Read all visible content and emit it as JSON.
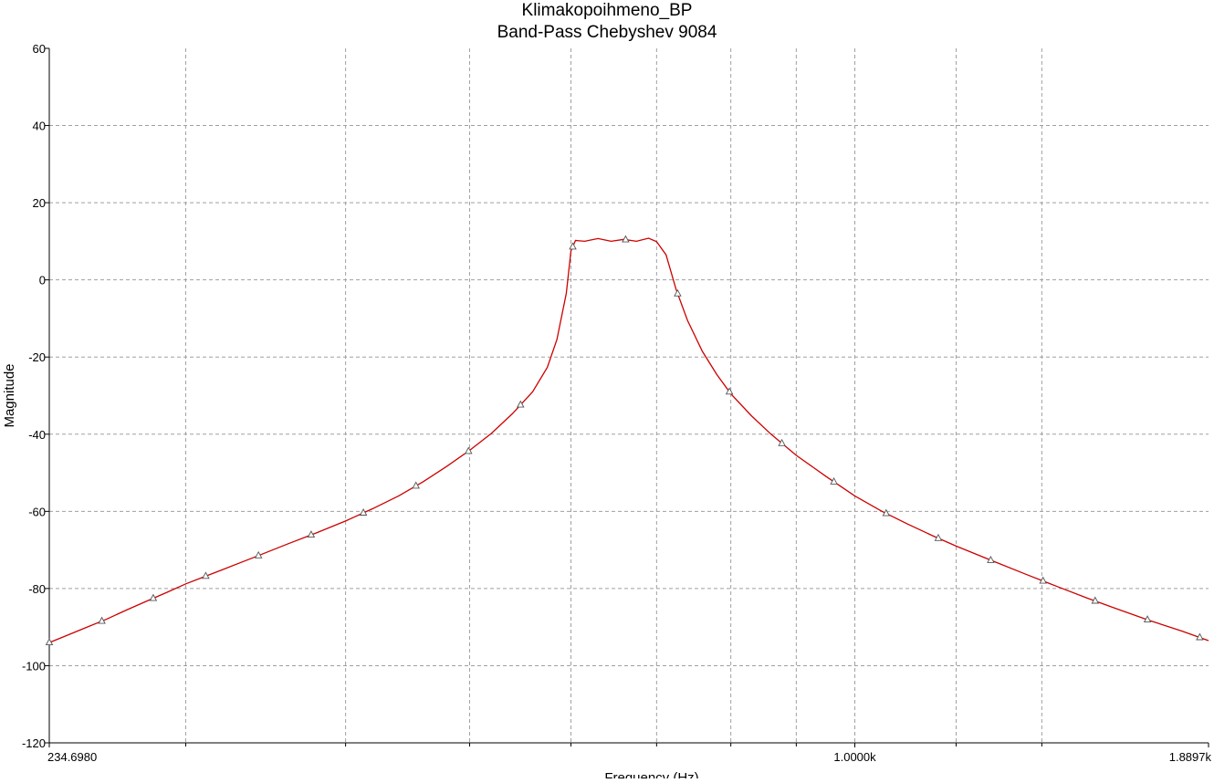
{
  "chart_data": {
    "type": "line",
    "title": "Klimakopoihmeno_BP",
    "subtitle": "Band-Pass Chebyshev 9084",
    "xlabel": "Frequency (Hz)",
    "ylabel": "Magnitude",
    "x_scale": "log",
    "xlim": [
      234.698,
      1889.7
    ],
    "ylim": [
      -120,
      60
    ],
    "yticks": [
      60,
      40,
      20,
      0,
      -20,
      -40,
      -60,
      -80,
      -100,
      -120
    ],
    "x_tick_labels": [
      {
        "value": 234.698,
        "label": "234.6980"
      },
      {
        "value": 1000,
        "label": "1.0000k"
      },
      {
        "value": 1889.7,
        "label": "1.8897k"
      }
    ],
    "x_gridlines": [
      300,
      400,
      500,
      600,
      700,
      800,
      900,
      1000,
      1200,
      1400
    ],
    "grid": true,
    "line_color": "#cc0000",
    "marker": "triangle",
    "series": [
      {
        "name": "",
        "x": [
          234.7,
          240,
          250,
          260,
          270,
          280,
          290,
          300,
          320,
          340,
          360,
          380,
          400,
          420,
          440,
          460,
          480,
          500,
          520,
          540,
          560,
          575,
          585,
          595,
          600,
          605,
          615,
          630,
          645,
          660,
          675,
          690,
          700,
          712,
          725,
          740,
          760,
          780,
          800,
          830,
          860,
          900,
          950,
          1000,
          1050,
          1100,
          1150,
          1200,
          1280,
          1360,
          1440,
          1520,
          1600,
          1700,
          1800,
          1889.7
        ],
        "y": [
          -94,
          -92.7,
          -90.3,
          -88,
          -85.5,
          -83.2,
          -81,
          -78.8,
          -75.2,
          -71.8,
          -68.5,
          -65.5,
          -62.5,
          -59.3,
          -56,
          -52.3,
          -48.3,
          -44.2,
          -39.8,
          -34.7,
          -29,
          -22.7,
          -15.5,
          -3.5,
          7.5,
          10.2,
          10,
          10.7,
          10,
          10.5,
          10,
          10.8,
          9.9,
          6.5,
          -2.5,
          -10.5,
          -18.5,
          -24.5,
          -29.5,
          -35.2,
          -40,
          -45.5,
          -51,
          -56,
          -60,
          -63.3,
          -66.3,
          -69,
          -72.8,
          -76.3,
          -79.5,
          -82.5,
          -85.2,
          -88.3,
          -91,
          -93.5
        ]
      }
    ],
    "marker_x": [
      234.7,
      258,
      283,
      311,
      342,
      376,
      413,
      454,
      499,
      548,
      602,
      662,
      727,
      798,
      877,
      963,
      1058,
      1162,
      1277,
      1403,
      1541,
      1693,
      1860
    ]
  }
}
